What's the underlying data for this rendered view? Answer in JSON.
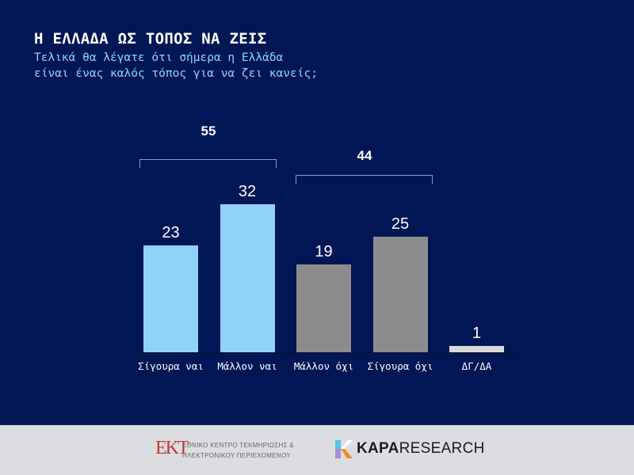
{
  "header": {
    "title": "Η ΕΛΛΑΔΑ ΩΣ ΤΟΠΟΣ ΝΑ ΖΕΙΣ",
    "subtitle_line1": "Τελικά θα λέγατε ότι σήμερα η Ελλάδα",
    "subtitle_line2": "είναι ένας καλός τόπος για να ζει κανείς;"
  },
  "chart_data": {
    "type": "bar",
    "title": "Η ΕΛΛΑΔΑ ΩΣ ΤΟΠΟΣ ΝΑ ΖΕΙΣ",
    "subtitle": "Τελικά θα λέγατε ότι σήμερα η Ελλάδα είναι ένας καλός τόπος για να ζει κανείς;",
    "categories": [
      "Σίγουρα ναι",
      "Μάλλον ναι",
      "Μάλλον όχι",
      "Σίγουρα όχι",
      "ΔΓ/ΔΑ"
    ],
    "values": [
      23,
      32,
      19,
      25,
      1
    ],
    "value_labels": [
      "23",
      "32",
      "19",
      "25",
      "1"
    ],
    "colors": [
      "#8fd3fb",
      "#8fd3fb",
      "#8c8c8c",
      "#8c8c8c",
      "#d9d9d9"
    ],
    "groups": [
      {
        "label": "55",
        "value": 55,
        "categories": [
          "Σίγουρα ναι",
          "Μάλλον ναι"
        ]
      },
      {
        "label": "44",
        "value": 44,
        "categories": [
          "Μάλλον όχι",
          "Σίγουρα όχι"
        ]
      }
    ],
    "xlabel": "",
    "ylabel": "",
    "grid": false,
    "legend": "none"
  },
  "footer": {
    "ekt_logo": "EKT",
    "ekt_line1": "ΕΘΝΙΚΟ ΚΕΝΤΡΟ ΤΕΚΜΗΡΙΩΣΗΣ &",
    "ekt_line2": "ΗΛΕΚΤΡΟΝΙΚΟΥ ΠΕΡΙΕΧΟΜΕΝΟΥ",
    "kapa_bold": "KAPA",
    "kapa_light": "RESEARCH"
  }
}
